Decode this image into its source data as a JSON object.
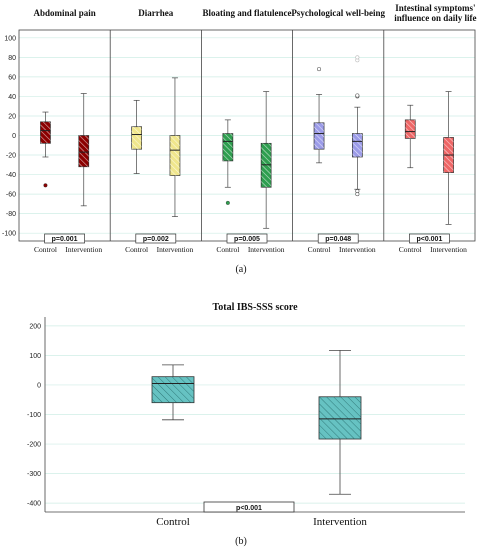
{
  "chart_data": [
    {
      "type": "box",
      "panel_label": "(a)",
      "ylim": [
        -108,
        108
      ],
      "yticks": [
        100,
        80,
        60,
        40,
        20,
        0,
        -20,
        -40,
        -60,
        -80,
        -100
      ],
      "categories": [
        "Control",
        "Intervention"
      ],
      "panels": [
        {
          "title": "Abdominal pain",
          "color": "#8b0000",
          "p_label": "p=0.001",
          "boxes": [
            {
              "min": -22,
              "q1": -8,
              "median": 5,
              "q3": 14,
              "max": 24,
              "outliers": [
                -51
              ]
            },
            {
              "min": -72,
              "q1": -32,
              "median": -17,
              "q3": 0,
              "max": 43,
              "outliers": []
            }
          ]
        },
        {
          "title": "Diarrhea",
          "color": "#f0e68c",
          "p_label": "p=0.002",
          "boxes": [
            {
              "min": -39,
              "q1": -14,
              "median": 1,
              "q3": 9,
              "max": 36,
              "outliers": []
            },
            {
              "min": -83,
              "q1": -41,
              "median": -15,
              "q3": 0,
              "max": 59,
              "outliers": []
            }
          ]
        },
        {
          "title": "Bloating and flatulence",
          "color": "#2e9e4f",
          "p_label": "p=0.005",
          "boxes": [
            {
              "min": -53,
              "q1": -26,
              "median": -6,
              "q3": 2,
              "max": 16,
              "outliers": [
                -69
              ]
            },
            {
              "min": -95,
              "q1": -53,
              "median": -30,
              "q3": -8,
              "max": 45,
              "outliers": []
            }
          ]
        },
        {
          "title": "Psychological well-being",
          "color": "#9b9be8",
          "p_label": "p=0.048",
          "boxes": [
            {
              "min": -28,
              "q1": -14,
              "median": 2,
              "q3": 13,
              "max": 42,
              "outliers": [
                68
              ]
            },
            {
              "min": -55,
              "q1": -22,
              "median": -6,
              "q3": 2,
              "max": 29,
              "outliers": [
                40,
                41,
                77,
                80,
                -57,
                -60
              ]
            }
          ]
        },
        {
          "title": "Intestinal symptoms' influence on daily life",
          "title_lines": [
            "Intestinal symptoms'",
            "influence on daily life"
          ],
          "color": "#ee6666",
          "p_label": "p<0.001",
          "boxes": [
            {
              "min": -33,
              "q1": -3,
              "median": 4,
              "q3": 16,
              "max": 31,
              "outliers": []
            },
            {
              "min": -91,
              "q1": -38,
              "median": -20,
              "q3": -2,
              "max": 45,
              "outliers": []
            }
          ]
        }
      ]
    },
    {
      "type": "box",
      "panel_label": "(b)",
      "title": "Total IBS-SSS score",
      "color": "#66c2c2",
      "ylim": [
        -430,
        230
      ],
      "yticks": [
        200,
        100,
        0,
        -100,
        -200,
        -300,
        -400
      ],
      "categories": [
        "Control",
        "Intervention"
      ],
      "p_label": "p<0.001",
      "boxes": [
        {
          "min": -118,
          "q1": -60,
          "median": 5,
          "q3": 28,
          "max": 68,
          "outliers": []
        },
        {
          "min": -370,
          "q1": -183,
          "median": -115,
          "q3": -40,
          "max": 117,
          "outliers": []
        }
      ]
    }
  ]
}
